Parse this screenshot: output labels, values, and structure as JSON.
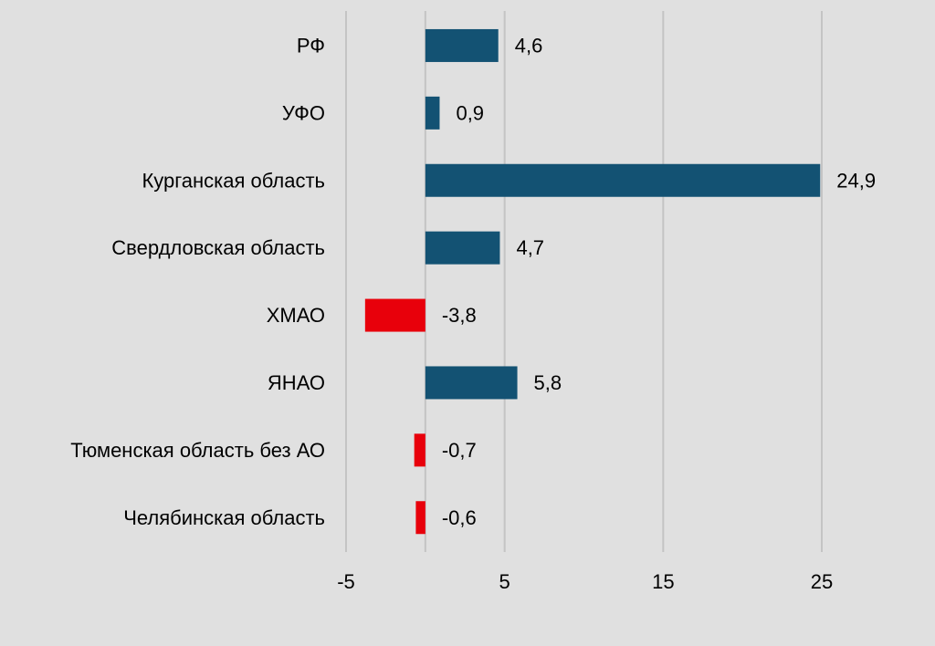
{
  "chart_data": {
    "type": "bar",
    "orientation": "horizontal",
    "title": "",
    "xlabel": "",
    "ylabel": "",
    "categories": [
      "РФ",
      "УФО",
      "Курганская область",
      "Свердловская область",
      "ХМАО",
      "ЯНАО",
      "Тюменская область без АО",
      "Челябинская область"
    ],
    "values": [
      4.6,
      0.9,
      24.9,
      4.7,
      -3.8,
      5.8,
      -0.7,
      -0.6
    ],
    "value_labels": [
      "4,6",
      "0,9",
      "24,9",
      "4,7",
      "-3,8",
      "5,8",
      "-0,7",
      "-0,6"
    ],
    "xticks": [
      -5,
      5,
      15,
      25
    ],
    "xtick_labels": [
      "-5",
      "5",
      "15",
      "25"
    ],
    "xlim": [
      -5,
      25
    ],
    "grid": true,
    "legend": "none",
    "colors": {
      "positive": "#135273",
      "negative": "#e8000b",
      "gridline": "#c4c4c4",
      "background": "#e0e0e0"
    }
  }
}
